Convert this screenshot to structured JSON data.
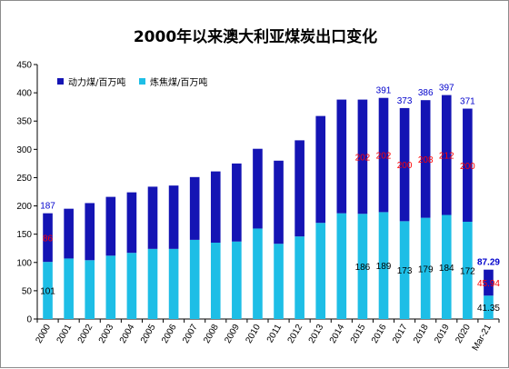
{
  "chart_data": {
    "type": "bar",
    "stacked": true,
    "title": "2000年以来澳大利亚煤炭出口变化",
    "categories": [
      "2000",
      "2001",
      "2002",
      "2003",
      "2004",
      "2005",
      "2006",
      "2007",
      "2008",
      "2009",
      "2010",
      "2011",
      "2012",
      "2013",
      "2014",
      "2015",
      "2016",
      "2017",
      "2018",
      "2019",
      "2020",
      "Mar-21"
    ],
    "series": [
      {
        "name": "炼焦煤/百万吨",
        "color": "#1ebee6",
        "values": [
          101,
          107,
          104,
          112,
          117,
          124,
          124,
          140,
          135,
          137,
          160,
          133,
          146,
          170,
          187,
          186,
          189,
          173,
          179,
          184,
          172,
          41.35
        ],
        "labels": {
          "0": "101",
          "15": "186",
          "16": "189",
          "17": "173",
          "18": "179",
          "19": "184",
          "20": "172",
          "21": "41.35"
        },
        "label_color": "#000000"
      },
      {
        "name": "动力煤/百万吨",
        "color": "#1414b4",
        "values": [
          86,
          88,
          101,
          104,
          107,
          110,
          112,
          111,
          126,
          138,
          141,
          147,
          170,
          189,
          201,
          202,
          202,
          200,
          208,
          212,
          200,
          45.94
        ],
        "labels": {
          "0": "86",
          "15": "202",
          "16": "202",
          "17": "200",
          "18": "208",
          "19": "212",
          "20": "200",
          "21": "45.94"
        },
        "label_color": "#ff0000"
      }
    ],
    "totals": [
      187,
      195,
      205,
      216,
      224,
      234,
      236,
      251,
      261,
      275,
      301,
      280,
      316,
      359,
      388,
      388,
      391,
      373,
      386,
      397,
      371,
      87.29
    ],
    "total_labels": {
      "0": "187",
      "16": "391",
      "17": "373",
      "18": "386",
      "19": "397",
      "20": "371",
      "21": "87.29"
    },
    "total_label_color": "#0000cc",
    "ylim": [
      0,
      450
    ],
    "yticks": [
      0,
      50,
      100,
      150,
      200,
      250,
      300,
      350,
      400,
      450
    ],
    "xlabel": "",
    "ylabel": "",
    "grid": false,
    "legend": "top-left"
  }
}
